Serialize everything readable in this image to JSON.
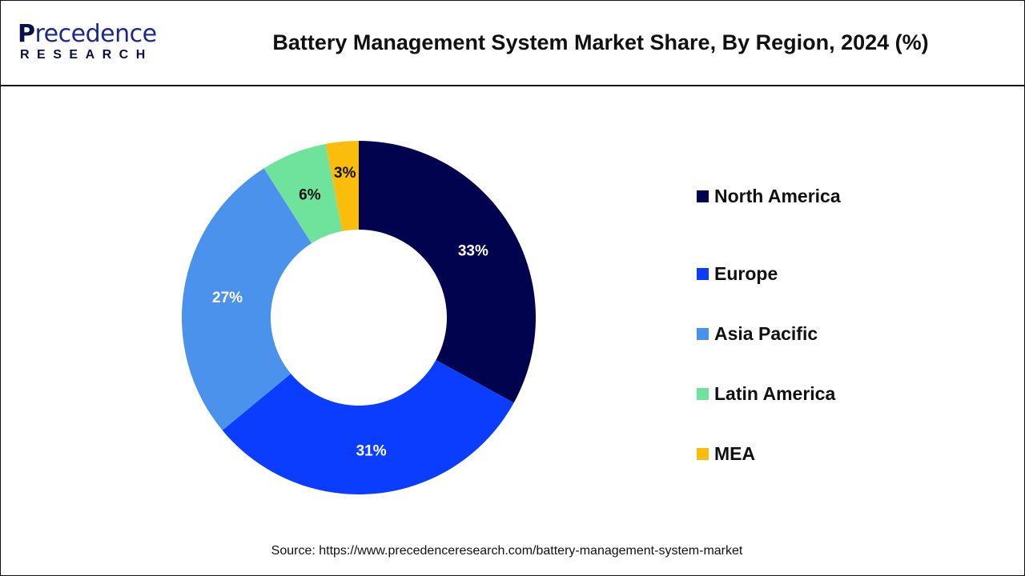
{
  "logo": {
    "text_main": "Precedence",
    "text_sub": "RESEARCH"
  },
  "header": {
    "title": "Battery Management System Market Share, By Region, 2024 (%)"
  },
  "chart_data": {
    "type": "pie",
    "variant": "donut",
    "title": "Battery Management System Market Share, By Region, 2024 (%)",
    "categories": [
      "North America",
      "Europe",
      "Asia Pacific",
      "Latin America",
      "MEA"
    ],
    "values": [
      33,
      31,
      27,
      6,
      3
    ],
    "labels": [
      "33%",
      "31%",
      "27%",
      "6%",
      "3%"
    ],
    "colors": [
      "#02034f",
      "#0a3dff",
      "#4a92ec",
      "#6fe39b",
      "#fbbd0b"
    ],
    "label_colors": [
      "#ffffff",
      "#ffffff",
      "#ffffff",
      "#111111",
      "#111111"
    ],
    "legend_placement": "right",
    "start": "top",
    "direction": "clockwise"
  },
  "source": "Source: https://www.precedenceresearch.com/battery-management-system-market"
}
